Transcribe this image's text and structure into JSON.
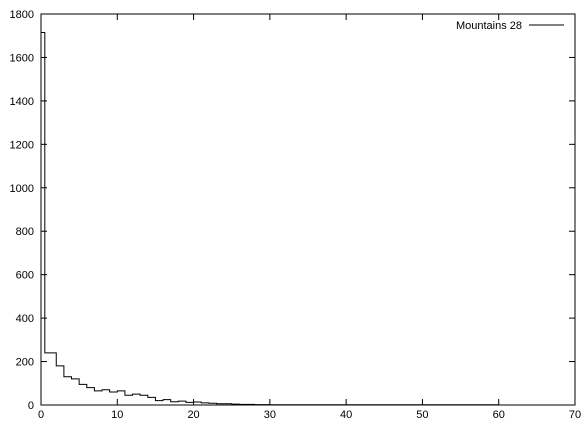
{
  "chart_data": {
    "type": "line",
    "step": true,
    "title": "",
    "xlabel": "",
    "ylabel": "",
    "xlim": [
      0,
      70
    ],
    "ylim": [
      0,
      1800
    ],
    "xticks": [
      0,
      10,
      20,
      30,
      40,
      50,
      60,
      70
    ],
    "yticks": [
      0,
      200,
      400,
      600,
      800,
      1000,
      1200,
      1400,
      1600,
      1800
    ],
    "grid": false,
    "legend": "top-right",
    "series": [
      {
        "name": "Mountains 28",
        "color": "#000000",
        "x": [
          0,
          0.5,
          1,
          2,
          3,
          4,
          5,
          6,
          7,
          8,
          9,
          10,
          11,
          12,
          13,
          14,
          15,
          16,
          17,
          18,
          19,
          20,
          21,
          22,
          23,
          24,
          25,
          26,
          27,
          28,
          29,
          30,
          40,
          50,
          60,
          65
        ],
        "y": [
          1715,
          240,
          240,
          180,
          130,
          120,
          95,
          80,
          65,
          70,
          60,
          65,
          45,
          50,
          45,
          35,
          20,
          25,
          15,
          18,
          12,
          14,
          10,
          8,
          6,
          6,
          4,
          3,
          3,
          2,
          2,
          1,
          1,
          1,
          0,
          0
        ]
      }
    ]
  }
}
